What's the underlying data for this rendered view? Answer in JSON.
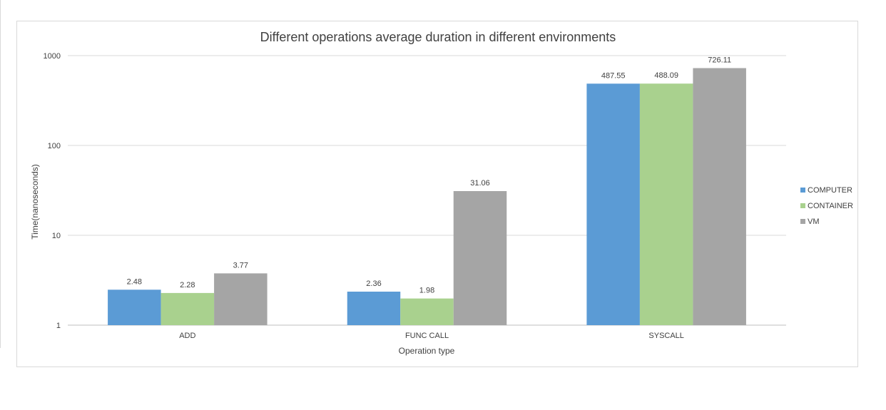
{
  "chart_data": {
    "type": "bar",
    "title": "Different operations average duration in different environments",
    "xlabel": "Operation type",
    "ylabel": "Time(nanoseconds)",
    "yscale": "log",
    "ylim": [
      1,
      1000
    ],
    "yticks": [
      "1",
      "10",
      "100",
      "1000"
    ],
    "categories": [
      "ADD",
      "FUNC CALL",
      "SYSCALL"
    ],
    "series": [
      {
        "name": "COMPUTER",
        "color": "#5b9bd5",
        "values": [
          2.48,
          2.36,
          487.55
        ]
      },
      {
        "name": "CONTAINER",
        "color": "#a9d18e",
        "values": [
          2.28,
          1.98,
          488.09
        ]
      },
      {
        "name": "VM",
        "color": "#a5a5a5",
        "values": [
          3.77,
          31.06,
          726.11
        ]
      }
    ],
    "grid": true,
    "legend": "right"
  }
}
